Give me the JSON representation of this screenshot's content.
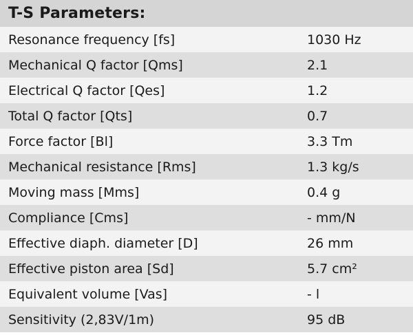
{
  "title": "T-S Parameters:",
  "rows": [
    {
      "label": "Resonance frequency [fs]",
      "value": "1030 Hz"
    },
    {
      "label": "Mechanical Q factor [Qms]",
      "value": "2.1"
    },
    {
      "label": "Electrical Q factor [Qes]",
      "value": "1.2"
    },
    {
      "label": "Total Q factor [Qts]",
      "value": "0.7"
    },
    {
      "label": "Force factor [Bl]",
      "value": "3.3 Tm"
    },
    {
      "label": "Mechanical resistance [Rms]",
      "value": "1.3 kg/s"
    },
    {
      "label": "Moving mass [Mms]",
      "value": "0.4 g"
    },
    {
      "label": "Compliance [Cms]",
      "value": "- mm/N"
    },
    {
      "label": "Effective diaph. diameter [D]",
      "value": "26 mm"
    },
    {
      "label": "Effective piston area [Sd]",
      "value": "5.7 cm²"
    },
    {
      "label": "Equivalent volume [Vas]",
      "value": "- l"
    },
    {
      "label": "Sensitivity (2,83V/1m)",
      "value": "95 dB"
    }
  ]
}
